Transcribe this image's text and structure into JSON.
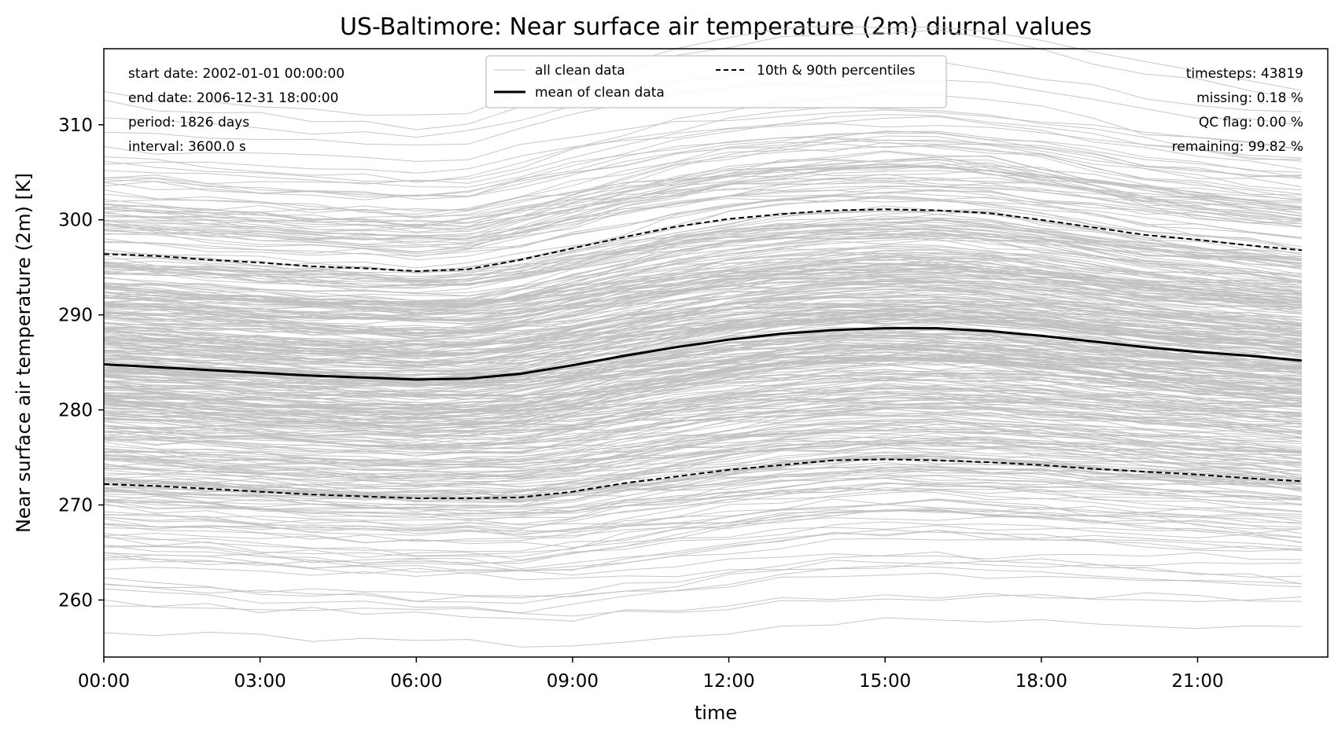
{
  "chart_data": {
    "type": "line",
    "title": "US-Baltimore: Near surface air temperature (2m) diurnal values",
    "xlabel": "time",
    "ylabel": "Near surface air temperature (2m) [K]",
    "x_ticks": [
      "00:00",
      "03:00",
      "06:00",
      "09:00",
      "12:00",
      "15:00",
      "18:00",
      "21:00"
    ],
    "x_hours": [
      0,
      3,
      6,
      9,
      12,
      15,
      18,
      21
    ],
    "xlim": [
      0,
      23.5
    ],
    "y_ticks": [
      260,
      270,
      280,
      290,
      300,
      310
    ],
    "ylim": [
      254,
      318
    ],
    "grid": false,
    "hours": [
      0,
      1,
      2,
      3,
      4,
      5,
      6,
      7,
      8,
      9,
      10,
      11,
      12,
      13,
      14,
      15,
      16,
      17,
      18,
      19,
      20,
      21,
      22,
      23
    ],
    "series": [
      {
        "name": "mean of clean data",
        "color": "#000000",
        "style": "solid",
        "values": [
          284.8,
          284.5,
          284.2,
          283.9,
          283.6,
          283.4,
          283.2,
          283.3,
          283.8,
          284.7,
          285.7,
          286.6,
          287.4,
          288.0,
          288.4,
          288.6,
          288.6,
          288.3,
          287.8,
          287.2,
          286.6,
          286.1,
          285.7,
          285.2
        ]
      },
      {
        "name": "90th percentile",
        "color": "#000000",
        "style": "dashed",
        "values": [
          296.4,
          296.2,
          295.8,
          295.5,
          295.1,
          294.9,
          294.6,
          294.8,
          295.8,
          297.0,
          298.2,
          299.3,
          300.1,
          300.6,
          301.0,
          301.1,
          301.0,
          300.7,
          300.0,
          299.2,
          298.4,
          297.9,
          297.3,
          296.8
        ]
      },
      {
        "name": "10th percentile",
        "color": "#000000",
        "style": "dashed",
        "values": [
          272.2,
          272.0,
          271.7,
          271.4,
          271.1,
          270.9,
          270.7,
          270.7,
          270.8,
          271.4,
          272.3,
          273.0,
          273.7,
          274.2,
          274.7,
          274.8,
          274.7,
          274.5,
          274.2,
          273.8,
          273.5,
          273.2,
          272.8,
          272.5
        ]
      }
    ],
    "clean_data_color": "#c0c0c0",
    "legend": {
      "placement": "top-center",
      "entries": [
        {
          "label": "all clean data",
          "style": "thin-gray"
        },
        {
          "label": "10th & 90th percentiles",
          "style": "dashed"
        },
        {
          "label": "mean of clean data",
          "style": "solid"
        }
      ]
    },
    "info_left": [
      "start date: 2002-01-01 00:00:00",
      "end date: 2006-12-31 18:00:00",
      "period: 1826 days",
      "interval: 3600.0 s"
    ],
    "info_right": [
      "timesteps: 43819",
      "missing: 0.18 %",
      "QC flag: 0.00 %",
      "remaining: 99.82 %"
    ]
  }
}
